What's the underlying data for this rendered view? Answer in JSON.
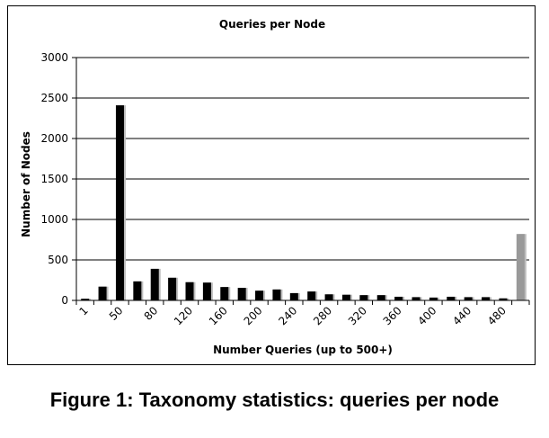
{
  "figure_caption": "Figure 1: Taxonomy statistics: queries per node",
  "chart_data": {
    "type": "bar",
    "title": "Queries per Node",
    "xlabel": "Number Queries (up to 500+)",
    "ylabel": "Number of Nodes",
    "ylim": [
      0,
      3000
    ],
    "yticks": [
      0,
      500,
      1000,
      1500,
      2000,
      2500,
      3000
    ],
    "grid": "horizontal",
    "legend": "none",
    "x_tick_labels": [
      "1",
      "50",
      "80",
      "120",
      "160",
      "200",
      "240",
      "280",
      "320",
      "360",
      "400",
      "440",
      "480"
    ],
    "x_tick_positions": [
      0,
      2,
      4,
      6,
      8,
      10,
      12,
      14,
      16,
      18,
      20,
      22,
      24
    ],
    "values": [
      20,
      170,
      2410,
      235,
      390,
      280,
      225,
      220,
      165,
      155,
      120,
      135,
      90,
      110,
      75,
      70,
      65,
      65,
      45,
      40,
      35,
      45,
      40,
      40,
      25,
      820
    ],
    "highlight_index": 25,
    "colors": {
      "bar": "#000000",
      "highlight_bar": "#999999",
      "grid": "#000000"
    }
  }
}
